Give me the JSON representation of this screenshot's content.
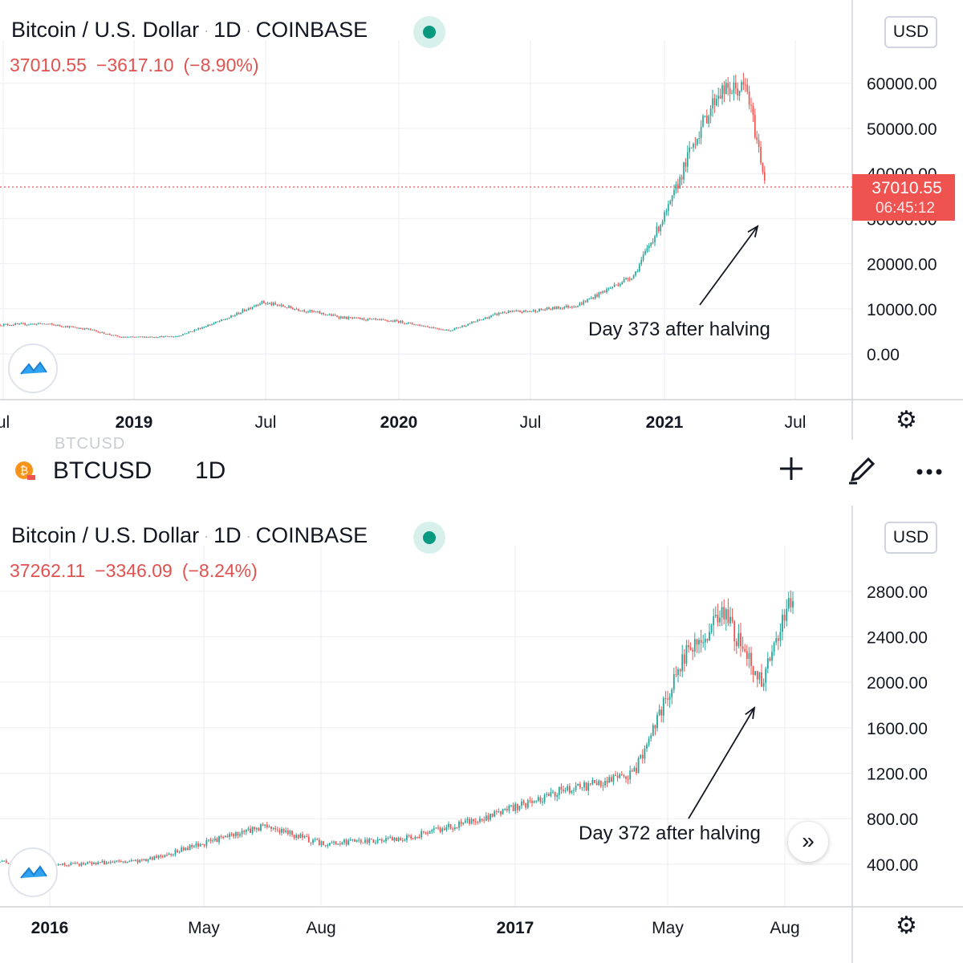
{
  "colors": {
    "up": "#26a69a",
    "down": "#ef5350",
    "text": "#131722",
    "grid": "#eceef2",
    "price_tag": "#ef5350"
  },
  "toolbar": {
    "symbol": "BTCUSD",
    "interval": "1D",
    "ghost_text": "BTCUSD",
    "icons": [
      "bitcoin-icon",
      "plus-icon",
      "pencil-icon",
      "more-icon"
    ]
  },
  "charts": [
    {
      "title": "Bitcoin / U.S. Dollar",
      "interval": "1D",
      "exchange": "COINBASE",
      "last": "37010.55",
      "change": "−3617.10",
      "change_pct": "(−8.90%)",
      "currency": "USD",
      "price_tag": {
        "value": "37010.55",
        "countdown": "06:45:12"
      },
      "annotation": "Day 373 after halving",
      "yticks": [
        "60000.00",
        "50000.00",
        "40000.00",
        "30000.00",
        "20000.00",
        "10000.00",
        "0.00"
      ],
      "xticks": [
        {
          "label": "ul",
          "bold": false
        },
        {
          "label": "2019",
          "bold": true
        },
        {
          "label": "Jul",
          "bold": false
        },
        {
          "label": "2020",
          "bold": true
        },
        {
          "label": "Jul",
          "bold": false
        },
        {
          "label": "2021",
          "bold": true
        },
        {
          "label": "Jul",
          "bold": false
        }
      ]
    },
    {
      "title": "Bitcoin / U.S. Dollar",
      "interval": "1D",
      "exchange": "COINBASE",
      "last": "37262.11",
      "change": "−3346.09",
      "change_pct": "(−8.24%)",
      "currency": "USD",
      "annotation": "Day 372 after halving",
      "yticks": [
        "2800.00",
        "2400.00",
        "2000.00",
        "1600.00",
        "1200.00",
        "800.00",
        "400.00"
      ],
      "xticks": [
        {
          "label": "2016",
          "bold": true
        },
        {
          "label": "May",
          "bold": false
        },
        {
          "label": "Aug",
          "bold": false
        },
        {
          "label": "2017",
          "bold": true
        },
        {
          "label": "May",
          "bold": false
        },
        {
          "label": "Aug",
          "bold": false
        }
      ]
    }
  ],
  "chart_data": [
    {
      "type": "line",
      "title": "Bitcoin / U.S. Dollar",
      "ylabel": "USD",
      "ylim": [
        -3000,
        66000
      ],
      "x": [
        "2018-07",
        "2018-09",
        "2018-11",
        "2019-01",
        "2019-03",
        "2019-05",
        "2019-07",
        "2019-09",
        "2019-11",
        "2020-01",
        "2020-03",
        "2020-05",
        "2020-07",
        "2020-09",
        "2020-11",
        "2021-01",
        "2021-02",
        "2021-03",
        "2021-04",
        "2021-05"
      ],
      "series": [
        {
          "values": [
            6500,
            6700,
            5500,
            3700,
            3900,
            8000,
            11500,
            9800,
            8000,
            7200,
            5200,
            9200,
            9500,
            10800,
            17500,
            33000,
            46000,
            58000,
            59000,
            37010.55
          ]
        }
      ],
      "annotation": "Day 373 after halving",
      "grid": true
    },
    {
      "type": "line",
      "title": "Bitcoin / U.S. Dollar",
      "ylabel": "USD",
      "ylim": [
        180,
        3060
      ],
      "x": [
        "2015-12",
        "2016-02",
        "2016-04",
        "2016-06",
        "2016-08",
        "2016-10",
        "2016-12",
        "2017-01",
        "2017-02",
        "2017-03",
        "2017-04",
        "2017-05",
        "2017-06",
        "2017-07",
        "2017-08"
      ],
      "series": [
        {
          "values": [
            420,
            400,
            430,
            740,
            580,
            620,
            800,
            900,
            1050,
            1100,
            1200,
            2200,
            2600,
            2000,
            2850
          ]
        }
      ],
      "annotation": "Day 372 after halving",
      "grid": true
    }
  ]
}
